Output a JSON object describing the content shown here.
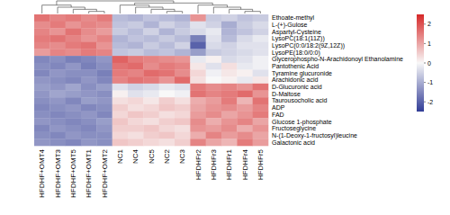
{
  "chart_data": {
    "type": "heatmap",
    "rows": [
      "Ethoate-methyl",
      "L-(+)-Gulose",
      "Aspartyl-Cysteine",
      "LysoPC(18:1(11Z))",
      "LysoPC(0:0/18:2(9Z,12Z))",
      "LysoPE(18:0/0:0)",
      "Glycerophospho-N-Arachidonoyl Ethanolamine",
      "Pantothenic Acid",
      "Tyramine glucuronide",
      "Arachidonic acid",
      "D-Glucuronic acid",
      "D-Maltose",
      "Taurousocholic acid",
      "ADP",
      "FAD",
      "Glucose 1-phosphate",
      "Fructoseglycine",
      "N-(1-Deoxy-1-fructosyl)leucine",
      "Galactonic acid"
    ],
    "columns": [
      "HFDHF+OMT4",
      "HFDHF+OMT3",
      "HFDHF+OMT5",
      "HFDHF+OMT1",
      "HFDHF+OMT2",
      "NC1",
      "NC4",
      "NC5",
      "NC2",
      "NC3",
      "HFDHFr2",
      "HFDHFr3",
      "HFDHFr1",
      "HFDHFr4",
      "HFDHFr5"
    ],
    "cells": [
      [
        1.6,
        1.4,
        1.5,
        1.3,
        1.5,
        -0.8,
        -0.9,
        -0.7,
        -0.8,
        -0.9,
        1.2,
        -0.6,
        -0.5,
        -0.7,
        -0.6
      ],
      [
        1.3,
        1.5,
        1.2,
        1.4,
        1.3,
        -0.7,
        -0.6,
        -0.9,
        -0.5,
        -0.7,
        -0.3,
        -0.5,
        -1.0,
        -0.6,
        -0.4
      ],
      [
        1.4,
        1.2,
        1.6,
        1.3,
        1.1,
        -0.6,
        -0.8,
        -0.5,
        -0.9,
        -0.6,
        -0.4,
        -0.2,
        -0.9,
        -0.7,
        -0.5
      ],
      [
        1.5,
        1.6,
        1.4,
        1.2,
        1.4,
        -0.9,
        -0.7,
        -0.8,
        -0.6,
        -0.8,
        -1.6,
        -0.3,
        -0.8,
        -0.4,
        -0.2
      ],
      [
        1.4,
        1.3,
        1.5,
        1.6,
        1.2,
        -0.8,
        -0.9,
        -0.6,
        -0.8,
        -0.5,
        -2.0,
        -0.4,
        -0.5,
        -0.3,
        -0.3
      ],
      [
        1.1,
        1.4,
        1.3,
        1.5,
        1.4,
        -0.7,
        -0.6,
        -0.8,
        -0.7,
        -0.9,
        -1.2,
        -0.6,
        -0.5,
        -0.4,
        -0.3
      ],
      [
        -1.5,
        -1.4,
        -1.6,
        -1.5,
        -1.3,
        1.8,
        1.5,
        1.4,
        1.3,
        1.2,
        -0.2,
        0.1,
        -0.4,
        -0.3,
        -0.1
      ],
      [
        -1.4,
        -1.5,
        -1.3,
        -1.6,
        -1.4,
        1.6,
        1.7,
        1.3,
        1.5,
        1.4,
        0.2,
        -0.3,
        0.3,
        -0.2,
        -0.1
      ],
      [
        -1.5,
        -1.3,
        -1.4,
        -1.4,
        -1.6,
        1.5,
        1.4,
        1.7,
        1.6,
        1.3,
        0.4,
        -0.1,
        0.2,
        0.1,
        -0.3
      ],
      [
        -1.3,
        -1.4,
        -1.5,
        -1.3,
        -1.5,
        1.4,
        1.6,
        1.5,
        1.2,
        1.7,
        0.3,
        0.0,
        0.1,
        -0.2,
        0.2
      ],
      [
        -1.2,
        -1.3,
        -1.1,
        -1.4,
        -1.2,
        -0.3,
        -0.5,
        -0.4,
        -0.2,
        -0.3,
        1.5,
        1.3,
        1.4,
        1.2,
        1.6
      ],
      [
        -1.3,
        -1.1,
        -1.2,
        -1.3,
        -1.4,
        0.1,
        -0.3,
        -0.2,
        0.0,
        -0.1,
        1.6,
        1.4,
        1.5,
        1.7,
        1.2
      ],
      [
        -1.4,
        -1.3,
        -1.5,
        -1.2,
        -1.3,
        0.3,
        0.4,
        0.2,
        0.5,
        0.3,
        0.9,
        1.1,
        1.5,
        0.8,
        1.6
      ],
      [
        -1.5,
        -1.4,
        -1.3,
        -1.5,
        -1.4,
        0.5,
        0.3,
        0.4,
        0.6,
        0.5,
        1.0,
        1.2,
        1.3,
        1.1,
        1.4
      ],
      [
        -1.4,
        -1.5,
        -1.4,
        -1.3,
        -1.5,
        0.4,
        0.6,
        0.5,
        0.3,
        0.4,
        1.1,
        1.3,
        1.0,
        1.2,
        1.5
      ],
      [
        -1.3,
        -1.4,
        -1.5,
        -1.4,
        -1.2,
        0.6,
        0.4,
        0.3,
        0.5,
        0.6,
        1.3,
        0.9,
        1.2,
        1.4,
        1.0
      ],
      [
        -1.5,
        -1.3,
        -1.4,
        -1.5,
        -1.3,
        0.5,
        0.5,
        0.6,
        0.4,
        0.3,
        1.2,
        1.1,
        1.3,
        0.9,
        1.2
      ],
      [
        -1.4,
        -1.5,
        -1.3,
        -1.4,
        -1.4,
        0.4,
        0.3,
        0.5,
        0.6,
        0.4,
        0.9,
        1.4,
        1.1,
        1.3,
        1.0
      ],
      [
        -1.3,
        -1.4,
        -1.5,
        -1.3,
        -1.4,
        0.6,
        0.5,
        0.4,
        0.3,
        0.5,
        1.4,
        1.0,
        0.8,
        1.5,
        1.1
      ]
    ],
    "color_range": [
      -2.5,
      2.5
    ],
    "color_ticks": [
      2,
      1,
      0,
      -1,
      -2
    ]
  }
}
